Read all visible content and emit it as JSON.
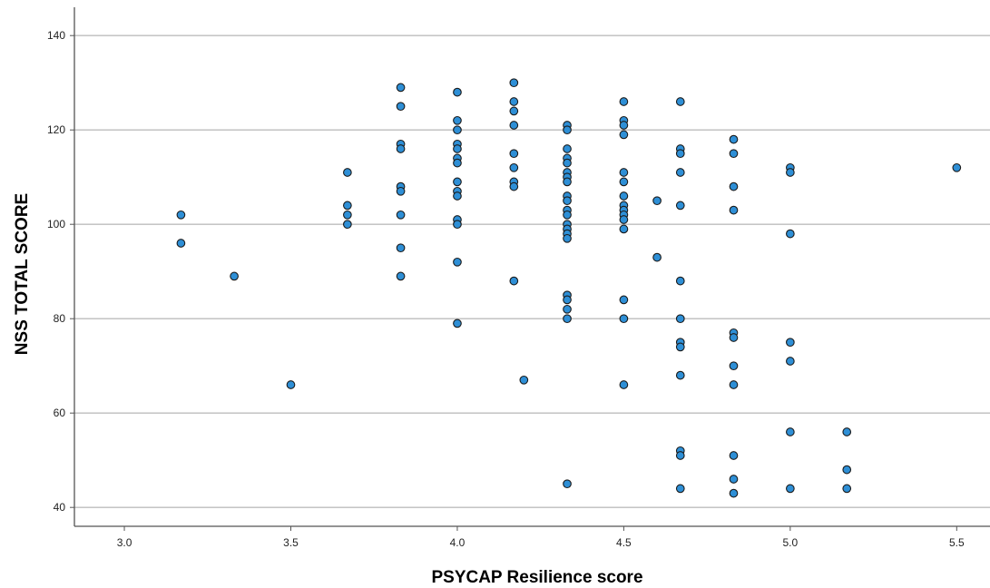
{
  "colors": {
    "marker_fill": "#2e8fd6",
    "marker_edge": "#1a1a1a",
    "grid": "#bdbdbd",
    "axis": "#555555"
  },
  "chart_data": {
    "type": "scatter",
    "title": "",
    "xlabel": "PSYCAP Resilience score",
    "ylabel": "NSS TOTAL SCORE",
    "xlim": [
      2.85,
      5.6
    ],
    "ylim": [
      36,
      146
    ],
    "xticks": [
      "3.0",
      "3.5",
      "4.0",
      "4.5",
      "5.0",
      "5.5"
    ],
    "yticks": [
      "40",
      "60",
      "80",
      "100",
      "120",
      "140"
    ],
    "grid": "horizontal",
    "legend": "none",
    "points": [
      [
        3.17,
        102
      ],
      [
        3.17,
        96
      ],
      [
        3.33,
        89
      ],
      [
        3.5,
        66
      ],
      [
        3.67,
        111
      ],
      [
        3.67,
        104
      ],
      [
        3.67,
        102
      ],
      [
        3.67,
        100
      ],
      [
        3.83,
        129
      ],
      [
        3.83,
        125
      ],
      [
        3.83,
        117
      ],
      [
        3.83,
        116
      ],
      [
        3.83,
        108
      ],
      [
        3.83,
        107
      ],
      [
        3.83,
        102
      ],
      [
        3.83,
        95
      ],
      [
        3.83,
        89
      ],
      [
        4.0,
        128
      ],
      [
        4.0,
        122
      ],
      [
        4.0,
        120
      ],
      [
        4.0,
        117
      ],
      [
        4.0,
        116
      ],
      [
        4.0,
        114
      ],
      [
        4.0,
        113
      ],
      [
        4.0,
        109
      ],
      [
        4.0,
        107
      ],
      [
        4.0,
        106
      ],
      [
        4.0,
        101
      ],
      [
        4.0,
        100
      ],
      [
        4.0,
        92
      ],
      [
        4.0,
        79
      ],
      [
        4.17,
        130
      ],
      [
        4.17,
        126
      ],
      [
        4.17,
        124
      ],
      [
        4.17,
        121
      ],
      [
        4.17,
        115
      ],
      [
        4.17,
        112
      ],
      [
        4.17,
        109
      ],
      [
        4.17,
        108
      ],
      [
        4.17,
        88
      ],
      [
        4.2,
        67
      ],
      [
        4.33,
        121
      ],
      [
        4.33,
        120
      ],
      [
        4.33,
        116
      ],
      [
        4.33,
        114
      ],
      [
        4.33,
        113
      ],
      [
        4.33,
        111
      ],
      [
        4.33,
        110
      ],
      [
        4.33,
        109
      ],
      [
        4.33,
        106
      ],
      [
        4.33,
        105
      ],
      [
        4.33,
        103
      ],
      [
        4.33,
        102
      ],
      [
        4.33,
        100
      ],
      [
        4.33,
        99
      ],
      [
        4.33,
        98
      ],
      [
        4.33,
        97
      ],
      [
        4.33,
        85
      ],
      [
        4.33,
        84
      ],
      [
        4.33,
        82
      ],
      [
        4.33,
        80
      ],
      [
        4.33,
        45
      ],
      [
        4.5,
        126
      ],
      [
        4.5,
        122
      ],
      [
        4.5,
        121
      ],
      [
        4.5,
        119
      ],
      [
        4.5,
        111
      ],
      [
        4.5,
        109
      ],
      [
        4.5,
        106
      ],
      [
        4.5,
        104
      ],
      [
        4.5,
        103
      ],
      [
        4.5,
        102
      ],
      [
        4.5,
        101
      ],
      [
        4.5,
        99
      ],
      [
        4.5,
        84
      ],
      [
        4.5,
        80
      ],
      [
        4.5,
        66
      ],
      [
        4.6,
        105
      ],
      [
        4.6,
        93
      ],
      [
        4.67,
        126
      ],
      [
        4.67,
        116
      ],
      [
        4.67,
        115
      ],
      [
        4.67,
        111
      ],
      [
        4.67,
        104
      ],
      [
        4.67,
        88
      ],
      [
        4.67,
        80
      ],
      [
        4.67,
        75
      ],
      [
        4.67,
        74
      ],
      [
        4.67,
        68
      ],
      [
        4.67,
        52
      ],
      [
        4.67,
        51
      ],
      [
        4.67,
        44
      ],
      [
        4.83,
        118
      ],
      [
        4.83,
        115
      ],
      [
        4.83,
        108
      ],
      [
        4.83,
        103
      ],
      [
        4.83,
        77
      ],
      [
        4.83,
        76
      ],
      [
        4.83,
        70
      ],
      [
        4.83,
        66
      ],
      [
        4.83,
        51
      ],
      [
        4.83,
        46
      ],
      [
        4.83,
        43
      ],
      [
        5.0,
        112
      ],
      [
        5.0,
        111
      ],
      [
        5.0,
        98
      ],
      [
        5.0,
        75
      ],
      [
        5.0,
        71
      ],
      [
        5.0,
        56
      ],
      [
        5.0,
        44
      ],
      [
        5.17,
        56
      ],
      [
        5.17,
        48
      ],
      [
        5.17,
        44
      ],
      [
        5.5,
        112
      ]
    ]
  }
}
